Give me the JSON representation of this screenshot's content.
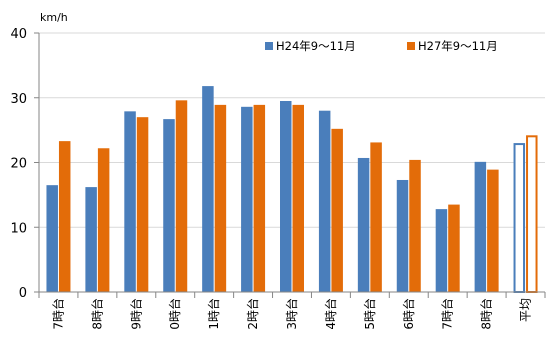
{
  "chart_data": {
    "type": "bar",
    "unit": "km/h",
    "categories": [
      "7時台",
      "8時台",
      "9時台",
      "0時台",
      "1時台",
      "2時台",
      "3時台",
      "4時台",
      "5時台",
      "6時台",
      "7時台",
      "8時台",
      "平均"
    ],
    "series": [
      {
        "name": "H24年9～11月",
        "color": "#4a7ebb",
        "values": [
          16.5,
          16.2,
          27.9,
          26.7,
          31.8,
          28.6,
          29.5,
          28.0,
          20.7,
          17.3,
          12.8,
          20.1,
          23.0
        ]
      },
      {
        "name": "H27年9～11月",
        "color": "#e36c09",
        "values": [
          23.3,
          22.2,
          27.0,
          29.6,
          28.9,
          28.9,
          28.9,
          25.2,
          23.1,
          20.4,
          13.5,
          18.9,
          24.2
        ]
      }
    ],
    "outlined_categories": [
      "平均"
    ],
    "ylim": [
      0,
      40
    ],
    "yticks": [
      0,
      10,
      20,
      30,
      40
    ],
    "grid": true,
    "legend_position": "top-right"
  }
}
